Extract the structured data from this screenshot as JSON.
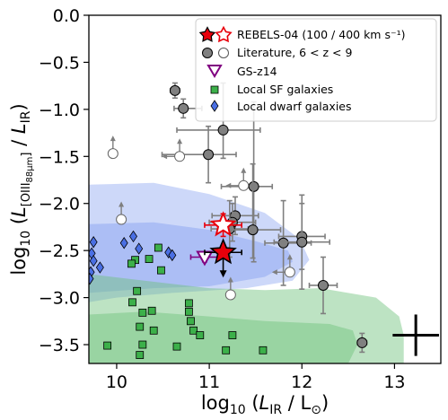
{
  "chart_data": {
    "type": "scatter",
    "title": "",
    "xlabel": "log10 (L_IR / L_⊙)",
    "ylabel": "log10 (L_[OIII 88μm] / L_IR)",
    "xlim": [
      9.7,
      13.5
    ],
    "ylim": [
      -3.7,
      0.0
    ],
    "xticks": [
      "10",
      "11",
      "12",
      "13"
    ],
    "yticks": [
      "0.0",
      "−0.5",
      "−1.0",
      "−1.5",
      "−2.0",
      "−2.5",
      "−3.0",
      "−3.5"
    ],
    "grid": false,
    "legend_position": "top-right",
    "legend": [
      {
        "label": "REBELS-04 (100 / 400 km s⁻¹)",
        "marker": "star-pair"
      },
      {
        "label": "Literature, 6 < z < 9",
        "marker": "circle-pair"
      },
      {
        "label": "GS-z14",
        "marker": "triangle-down"
      },
      {
        "label": "Local SF galaxies",
        "marker": "square"
      },
      {
        "label": "Local dwarf galaxies",
        "marker": "diamond"
      }
    ],
    "colors": {
      "rebels_filled": "#e8000b",
      "rebels_open": "#e8000b",
      "literature_filled": "#808080",
      "gs_z14": "#800080",
      "local_sf": "#3cb04a",
      "local_dwarf": "#4a6fe3",
      "errorbar": "#7f7f7f",
      "region_blue": "#6f8fef",
      "region_green": "#6cc07a"
    },
    "series": [
      {
        "name": "REBELS-04 (100 / 400 km s⁻¹)",
        "points": [
          {
            "style": "filled",
            "x": 11.15,
            "y": -2.52,
            "xerr": [
              0.2,
              0.2
            ],
            "yerr_upper": 0.08,
            "upper_limit": true
          },
          {
            "style": "open",
            "x": 11.15,
            "y": -2.23,
            "xerr": [
              0.2,
              0.2
            ],
            "yerr": [
              0.12,
              0.12
            ]
          }
        ]
      },
      {
        "name": "Literature, 6 < z < 9",
        "points": [
          {
            "style": "filled",
            "x": 10.63,
            "y": -0.8,
            "xerr": [
              0.05,
              0.05
            ],
            "yerr": [
              0.08,
              0.08
            ]
          },
          {
            "style": "filled",
            "x": 10.72,
            "y": -0.99,
            "xerr": [
              0.1,
              0.2
            ],
            "yerr": [
              0.1,
              0.1
            ]
          },
          {
            "style": "filled",
            "x": 11.15,
            "y": -1.22,
            "xerr": [
              0.5,
              0.4
            ],
            "yerr": [
              0.3,
              0.5
            ]
          },
          {
            "style": "filled",
            "x": 10.99,
            "y": -1.48,
            "xerr": [
              0.5,
              0.3
            ],
            "yerr": [
              0.3,
              0.3
            ]
          },
          {
            "style": "filled",
            "x": 11.48,
            "y": -1.82,
            "xerr": [
              0.35,
              0.2
            ],
            "yerr": [
              0.8,
              0.9
            ]
          },
          {
            "style": "filled",
            "x": 11.28,
            "y": -2.13,
            "xerr": [
              0.25,
              0.25
            ],
            "yerr": [
              0.2,
              0.2
            ]
          },
          {
            "style": "filled",
            "x": 11.25,
            "y": -2.2,
            "xerr": [
              0.25,
              0.25
            ],
            "yerr": [
              0.2,
              0.2
            ]
          },
          {
            "style": "filled",
            "x": 11.22,
            "y": -2.27,
            "xerr": [
              0.2,
              0.2
            ],
            "yerr": [
              0.3,
              0.3
            ]
          },
          {
            "style": "filled",
            "x": 11.47,
            "y": -2.28,
            "xerr": [
              0.3,
              0.3
            ],
            "yerr": [
              0.3,
              0.7
            ]
          },
          {
            "style": "filled",
            "x": 11.8,
            "y": -2.42,
            "xerr": [
              0.2,
              0.3
            ],
            "yerr": [
              0.45,
              0.45
            ]
          },
          {
            "style": "filled",
            "x": 12.0,
            "y": -2.35,
            "xerr": [
              0.25,
              0.25
            ],
            "yerr": [
              0.35,
              0.35
            ]
          },
          {
            "style": "filled",
            "x": 12.0,
            "y": -2.41,
            "xerr": [
              0.3,
              0.3
            ],
            "yerr": [
              0.5,
              0.5
            ]
          },
          {
            "style": "filled",
            "x": 12.23,
            "y": -2.87,
            "xerr": [
              0.15,
              0.15
            ],
            "yerr": [
              0.3,
              0.3
            ]
          },
          {
            "style": "filled",
            "x": 12.65,
            "y": -3.48,
            "xerr": [
              0.05,
              0.05
            ],
            "yerr": [
              0.1,
              0.1
            ]
          },
          {
            "style": "open",
            "x": 9.96,
            "y": -1.47,
            "upper_limit": true
          },
          {
            "style": "open",
            "x": 10.68,
            "y": -1.5,
            "upper_limit": true,
            "left_arrow": true
          },
          {
            "style": "open",
            "x": 11.37,
            "y": -1.81,
            "upper_limit": true,
            "left_arrow": true
          },
          {
            "style": "open",
            "x": 10.05,
            "y": -2.17,
            "upper_limit": true
          },
          {
            "style": "open",
            "x": 11.87,
            "y": -2.73,
            "upper_limit": true,
            "left_arrow": true
          },
          {
            "style": "open",
            "x": 11.23,
            "y": -2.97,
            "upper_limit": true
          }
        ]
      },
      {
        "name": "GS-z14",
        "points": [
          {
            "x": 10.95,
            "y": -2.57,
            "xerr": [
              0.15,
              0.15
            ],
            "yerr": [
              0.05,
              0.05
            ]
          }
        ]
      },
      {
        "name": "Local SF galaxies",
        "points": [
          {
            "x": 10.45,
            "y": -2.47
          },
          {
            "x": 10.35,
            "y": -2.59
          },
          {
            "x": 10.2,
            "y": -2.6
          },
          {
            "x": 10.16,
            "y": -2.64
          },
          {
            "x": 10.48,
            "y": -2.71
          },
          {
            "x": 10.22,
            "y": -2.93
          },
          {
            "x": 10.17,
            "y": -3.05
          },
          {
            "x": 10.78,
            "y": -3.06
          },
          {
            "x": 10.38,
            "y": -3.14
          },
          {
            "x": 10.78,
            "y": -3.15
          },
          {
            "x": 10.28,
            "y": -3.16
          },
          {
            "x": 10.25,
            "y": -3.31
          },
          {
            "x": 10.8,
            "y": -3.25
          },
          {
            "x": 10.4,
            "y": -3.35
          },
          {
            "x": 10.83,
            "y": -3.35
          },
          {
            "x": 10.9,
            "y": -3.4
          },
          {
            "x": 11.25,
            "y": -3.4
          },
          {
            "x": 9.9,
            "y": -3.51
          },
          {
            "x": 10.28,
            "y": -3.5
          },
          {
            "x": 10.65,
            "y": -3.52
          },
          {
            "x": 11.18,
            "y": -3.56
          },
          {
            "x": 11.58,
            "y": -3.56
          },
          {
            "x": 10.25,
            "y": -3.61
          }
        ]
      },
      {
        "name": "Local dwarf galaxies",
        "points": [
          {
            "x": 9.75,
            "y": -2.41
          },
          {
            "x": 9.73,
            "y": -2.53
          },
          {
            "x": 9.75,
            "y": -2.61
          },
          {
            "x": 9.72,
            "y": -2.73
          },
          {
            "x": 9.71,
            "y": -2.8
          },
          {
            "x": 9.82,
            "y": -2.68
          },
          {
            "x": 10.08,
            "y": -2.42
          },
          {
            "x": 10.18,
            "y": -2.35
          },
          {
            "x": 10.24,
            "y": -2.48
          },
          {
            "x": 10.56,
            "y": -2.52
          },
          {
            "x": 10.6,
            "y": -2.55
          }
        ]
      }
    ],
    "regions": [
      {
        "name": "blue-outer",
        "color": "region_blue",
        "opacity": 0.35,
        "polygon": [
          [
            9.7,
            -1.8
          ],
          [
            10.4,
            -1.78
          ],
          [
            11.0,
            -1.9
          ],
          [
            11.6,
            -2.1
          ],
          [
            11.98,
            -2.38
          ],
          [
            12.08,
            -2.6
          ],
          [
            11.9,
            -2.82
          ],
          [
            11.4,
            -2.9
          ],
          [
            10.6,
            -2.95
          ],
          [
            10.0,
            -3.0
          ],
          [
            9.7,
            -3.05
          ]
        ]
      },
      {
        "name": "blue-inner",
        "color": "region_blue",
        "opacity": 0.35,
        "polygon": [
          [
            9.7,
            -2.22
          ],
          [
            10.4,
            -2.2
          ],
          [
            11.0,
            -2.28
          ],
          [
            11.5,
            -2.4
          ],
          [
            11.85,
            -2.5
          ],
          [
            11.9,
            -2.62
          ],
          [
            11.6,
            -2.78
          ],
          [
            11.0,
            -2.88
          ],
          [
            10.4,
            -2.9
          ],
          [
            9.7,
            -2.95
          ]
        ]
      },
      {
        "name": "green-outer",
        "color": "region_green",
        "opacity": 0.45,
        "polygon": [
          [
            9.7,
            -2.75
          ],
          [
            10.3,
            -2.82
          ],
          [
            11.0,
            -2.9
          ],
          [
            11.6,
            -2.92
          ],
          [
            12.2,
            -2.9
          ],
          [
            12.5,
            -2.95
          ],
          [
            12.8,
            -3.0
          ],
          [
            13.05,
            -3.2
          ],
          [
            13.1,
            -3.4
          ],
          [
            13.1,
            -3.7
          ],
          [
            9.7,
            -3.7
          ]
        ]
      },
      {
        "name": "green-inner",
        "color": "region_green",
        "opacity": 0.45,
        "polygon": [
          [
            9.7,
            -3.18
          ],
          [
            10.3,
            -3.15
          ],
          [
            11.0,
            -3.2
          ],
          [
            11.6,
            -3.25
          ],
          [
            12.3,
            -3.28
          ],
          [
            12.55,
            -3.35
          ],
          [
            12.6,
            -3.5
          ],
          [
            12.5,
            -3.7
          ],
          [
            9.7,
            -3.7
          ]
        ]
      }
    ],
    "typical_error": {
      "x": 13.23,
      "y": -3.4,
      "xerr": 0.25,
      "yerr": 0.22
    }
  }
}
